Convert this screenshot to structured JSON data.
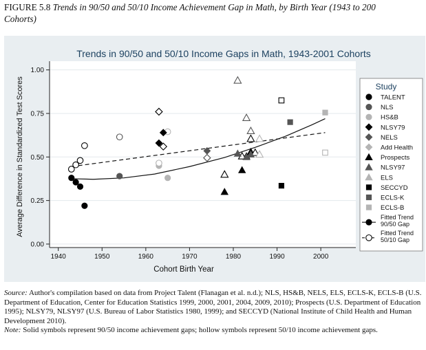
{
  "figure": {
    "label": "FIGURE 5.8",
    "title_line1": "Trends in 90/50 and 50/10 Income Achievement Gap in Math, by Birth Year (1943 to 200",
    "title_line2": "Cohorts)"
  },
  "notes": {
    "source_label": "Source:",
    "source_text": " Author's compilation based on data from Project Talent (Flanagan et al. n.d.); NLS, HS&B, NELS, ELS, ECLS-K, ECLS-B (U.S. Department of Education, Center for Education Statistics 1999, 2000, 2001, 2004, 2009, 2010); Prospects (U.S. Department of Education 1995); NLSY79, NLSY97 (U.S. Bureau of Labor Statistics 1980, 1999); and SECCYD (National Institute of Child Health and Human Development 2010).",
    "note_label": "Note:",
    "note_text": " Solid symbols represent 90/50 income achievement gaps; hollow symbols represent 50/10 income achievement gaps."
  },
  "chart_data": {
    "type": "scatter",
    "title": "Trends in 90/50 and 50/10 Income Gaps in Math, 1943-2001 Cohorts",
    "xlabel": "Cohort Birth Year",
    "ylabel": "Average Difference in Standardized Test Scores",
    "xlim": [
      1938,
      2008
    ],
    "ylim": [
      -0.02,
      1.05
    ],
    "x_ticks": [
      1940,
      1950,
      1960,
      1970,
      1980,
      1990,
      2000
    ],
    "y_ticks": [
      0,
      0.25,
      0.5,
      0.75,
      1.0
    ],
    "y_tick_labels": [
      "0.00",
      "0.25",
      "0.50",
      "0.75",
      "1.00"
    ],
    "grid": "horizontal",
    "legend": {
      "title": "Study",
      "position": "right",
      "entries": [
        {
          "label": "TALENT",
          "marker": "circle",
          "fill": "#000000"
        },
        {
          "label": "NLS",
          "marker": "circle",
          "fill": "#555555"
        },
        {
          "label": "HS&B",
          "marker": "circle",
          "fill": "#b4b4b4"
        },
        {
          "label": "NLSY79",
          "marker": "diamond",
          "fill": "#000000"
        },
        {
          "label": "NELS",
          "marker": "diamond",
          "fill": "#555555"
        },
        {
          "label": "Add Health",
          "marker": "diamond",
          "fill": "#b4b4b4"
        },
        {
          "label": "Prospects",
          "marker": "triangle",
          "fill": "#000000"
        },
        {
          "label": "NLSY97",
          "marker": "triangle",
          "fill": "#555555"
        },
        {
          "label": "ELS",
          "marker": "triangle",
          "fill": "#b4b4b4"
        },
        {
          "label": "SECCYD",
          "marker": "square",
          "fill": "#000000"
        },
        {
          "label": "ECLS-K",
          "marker": "square",
          "fill": "#555555"
        },
        {
          "label": "ECLS-B",
          "marker": "square",
          "fill": "#b4b4b4"
        },
        {
          "label": "Fitted Trend 90/50 Gap",
          "marker": "line-solid-circle"
        },
        {
          "label": "Fitted Trend 50/10 Gap",
          "marker": "line-dashed-hollow-circle"
        }
      ]
    },
    "series": [
      {
        "name": "TALENT 90/50",
        "marker": "circle",
        "fill": "#000000",
        "hollow": false,
        "points": [
          [
            1943,
            0.38
          ],
          [
            1944,
            0.355
          ],
          [
            1945,
            0.33
          ],
          [
            1946,
            0.22
          ]
        ]
      },
      {
        "name": "TALENT 50/10",
        "marker": "circle",
        "color": "#000000",
        "hollow": true,
        "points": [
          [
            1943,
            0.43
          ],
          [
            1944,
            0.455
          ],
          [
            1945,
            0.48
          ],
          [
            1946,
            0.565
          ]
        ]
      },
      {
        "name": "NLS 90/50",
        "marker": "circle",
        "fill": "#555555",
        "hollow": false,
        "points": [
          [
            1954,
            0.39
          ]
        ]
      },
      {
        "name": "NLS 50/10",
        "marker": "circle",
        "color": "#555555",
        "hollow": true,
        "points": [
          [
            1954,
            0.615
          ]
        ]
      },
      {
        "name": "HS&B 90/50",
        "marker": "circle",
        "fill": "#b4b4b4",
        "hollow": false,
        "points": [
          [
            1963,
            0.45
          ],
          [
            1965,
            0.38
          ]
        ]
      },
      {
        "name": "HS&B 50/10",
        "marker": "circle",
        "color": "#b4b4b4",
        "hollow": true,
        "points": [
          [
            1963,
            0.465
          ],
          [
            1965,
            0.645
          ]
        ]
      },
      {
        "name": "NLSY79 90/50",
        "marker": "diamond",
        "fill": "#000000",
        "hollow": false,
        "points": [
          [
            1963,
            0.58
          ],
          [
            1964,
            0.64
          ]
        ]
      },
      {
        "name": "NLSY79 50/10",
        "marker": "diamond",
        "color": "#000000",
        "hollow": true,
        "points": [
          [
            1963,
            0.76
          ],
          [
            1964,
            0.56
          ]
        ]
      },
      {
        "name": "NELS 90/50",
        "marker": "diamond",
        "fill": "#555555",
        "hollow": false,
        "points": [
          [
            1974,
            0.535
          ]
        ]
      },
      {
        "name": "NELS 50/10",
        "marker": "diamond",
        "color": "#555555",
        "hollow": true,
        "points": [
          [
            1974,
            0.495
          ]
        ]
      },
      {
        "name": "Add Health 90/50",
        "marker": "diamond",
        "fill": "#b4b4b4",
        "hollow": false,
        "points": []
      },
      {
        "name": "Add Health 50/10",
        "marker": "diamond",
        "color": "#b4b4b4",
        "hollow": true,
        "points": []
      },
      {
        "name": "Prospects 90/50",
        "marker": "triangle",
        "fill": "#000000",
        "hollow": false,
        "points": [
          [
            1978,
            0.3
          ],
          [
            1982,
            0.425
          ],
          [
            1983,
            0.505
          ],
          [
            1984,
            0.53
          ]
        ]
      },
      {
        "name": "Prospects 50/10",
        "marker": "triangle",
        "color": "#000000",
        "hollow": true,
        "points": [
          [
            1978,
            0.4
          ],
          [
            1982,
            0.505
          ],
          [
            1984,
            0.605
          ],
          [
            1985,
            0.525
          ]
        ]
      },
      {
        "name": "NLSY97 90/50",
        "marker": "triangle",
        "fill": "#555555",
        "hollow": false,
        "points": [
          [
            1981,
            0.52
          ],
          [
            1983,
            0.5
          ],
          [
            1984,
            0.515
          ]
        ]
      },
      {
        "name": "NLSY97 50/10",
        "marker": "triangle",
        "color": "#555555",
        "hollow": true,
        "points": [
          [
            1981,
            0.94
          ],
          [
            1983,
            0.725
          ],
          [
            1984,
            0.65
          ]
        ]
      },
      {
        "name": "ELS 90/50",
        "marker": "triangle",
        "fill": "#b4b4b4",
        "hollow": false,
        "points": []
      },
      {
        "name": "ELS 50/10",
        "marker": "triangle",
        "color": "#b4b4b4",
        "hollow": true,
        "points": [
          [
            1986,
            0.605
          ],
          [
            1986,
            0.515
          ]
        ]
      },
      {
        "name": "SECCYD 90/50",
        "marker": "square",
        "fill": "#000000",
        "hollow": false,
        "points": [
          [
            1991,
            0.335
          ]
        ]
      },
      {
        "name": "SECCYD 50/10",
        "marker": "square",
        "color": "#000000",
        "hollow": true,
        "points": [
          [
            1991,
            0.825
          ]
        ]
      },
      {
        "name": "ECLS-K 90/50",
        "marker": "square",
        "fill": "#555555",
        "hollow": false,
        "points": [
          [
            1993,
            0.7
          ]
        ]
      },
      {
        "name": "ECLS-B 90/50",
        "marker": "square",
        "fill": "#b4b4b4",
        "hollow": false,
        "points": [
          [
            2001,
            0.755
          ]
        ]
      },
      {
        "name": "ECLS-B 50/10",
        "marker": "square",
        "color": "#b4b4b4",
        "hollow": true,
        "points": [
          [
            2001,
            0.525
          ]
        ]
      }
    ],
    "fitted_trends": [
      {
        "name": "Fitted Trend 90/50 Gap",
        "style": "solid",
        "points": [
          [
            1943,
            0.375
          ],
          [
            1948,
            0.372
          ],
          [
            1955,
            0.38
          ],
          [
            1962,
            0.402
          ],
          [
            1970,
            0.445
          ],
          [
            1978,
            0.497
          ],
          [
            1985,
            0.555
          ],
          [
            1992,
            0.62
          ],
          [
            1998,
            0.685
          ],
          [
            2001,
            0.72
          ]
        ]
      },
      {
        "name": "Fitted Trend 50/10 Gap",
        "style": "dashed",
        "points": [
          [
            1943,
            0.445
          ],
          [
            2001,
            0.64
          ]
        ]
      }
    ]
  }
}
